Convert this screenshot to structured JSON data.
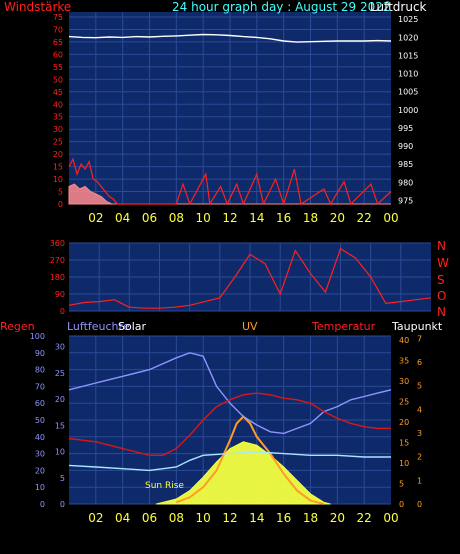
{
  "header": {
    "left_label": "Windstärke",
    "title": "24 hour graph day : August 29 2022",
    "right_label": "Luftdruck"
  },
  "dir_labels": [
    "N",
    "W",
    "S",
    "O",
    "N"
  ],
  "bottom_labels": {
    "regen": "Regen",
    "luftfeuchte": "Luftfeuchte",
    "solar": "Solar",
    "uv": "UV",
    "temperatur": "Temperatur",
    "taupunkt": "Taupunkt",
    "sunrise": "Sun Rise"
  },
  "colors": {
    "plot_bg": "#0f2a6b",
    "grid": "#2c4a96",
    "wind": "#ff2020",
    "gust": "#ff8a8a",
    "pressure": "#ffffff",
    "humidity": "#8f95ff",
    "temperature": "#d81818",
    "dewpoint": "#a8e6ff",
    "solar": "#f4ff40",
    "uv": "#ff9b26",
    "x_ticks": "#ffff40",
    "title": "#40ffff"
  },
  "chart_data": [
    {
      "type": "line",
      "name": "wind-pressure",
      "x_ticks": [
        "02",
        "04",
        "06",
        "08",
        "10",
        "12",
        "14",
        "16",
        "18",
        "20",
        "22",
        "00"
      ],
      "y_left_ticks": [
        0,
        5,
        10,
        15,
        20,
        25,
        30,
        35,
        40,
        45,
        50,
        55,
        60,
        65,
        70,
        75
      ],
      "y_right_ticks": [
        975,
        980,
        985,
        990,
        995,
        1000,
        1005,
        1010,
        1015,
        1020,
        1025
      ],
      "ylim_left": [
        0,
        77
      ],
      "ylim_right": [
        974,
        1027
      ],
      "series": [
        {
          "key": "pressure",
          "points": [
            [
              0,
              1020.2
            ],
            [
              1,
              1020.0
            ],
            [
              2,
              1019.9
            ],
            [
              3,
              1020.1
            ],
            [
              4,
              1020.0
            ],
            [
              5,
              1020.2
            ],
            [
              6,
              1020.1
            ],
            [
              7,
              1020.3
            ],
            [
              8,
              1020.4
            ],
            [
              9,
              1020.6
            ],
            [
              10,
              1020.8
            ],
            [
              11,
              1020.7
            ],
            [
              12,
              1020.5
            ],
            [
              13,
              1020.2
            ],
            [
              14,
              1020.0
            ],
            [
              15,
              1019.6
            ],
            [
              16,
              1019.0
            ],
            [
              17,
              1018.7
            ],
            [
              18,
              1018.8
            ],
            [
              19,
              1018.9
            ],
            [
              20,
              1019.0
            ],
            [
              21,
              1019.0
            ],
            [
              22,
              1019.0
            ],
            [
              23,
              1019.1
            ],
            [
              24,
              1019.0
            ]
          ]
        },
        {
          "key": "wind",
          "points": [
            [
              0,
              15
            ],
            [
              0.3,
              18
            ],
            [
              0.6,
              12
            ],
            [
              0.9,
              16
            ],
            [
              1.2,
              14
            ],
            [
              1.5,
              17
            ],
            [
              1.8,
              10
            ],
            [
              2.1,
              9
            ],
            [
              2.4,
              7
            ],
            [
              2.7,
              5
            ],
            [
              3,
              3
            ],
            [
              3.3,
              2
            ],
            [
              3.6,
              0
            ],
            [
              6,
              0
            ],
            [
              8,
              0
            ],
            [
              8.5,
              8
            ],
            [
              9,
              0
            ],
            [
              10.2,
              12
            ],
            [
              10.5,
              0
            ],
            [
              11.3,
              7
            ],
            [
              11.8,
              0
            ],
            [
              12.5,
              8
            ],
            [
              13,
              0
            ],
            [
              14,
              12
            ],
            [
              14.5,
              0
            ],
            [
              15.4,
              10
            ],
            [
              16,
              0
            ],
            [
              16.8,
              14
            ],
            [
              17.3,
              0
            ],
            [
              19,
              6
            ],
            [
              19.5,
              0
            ],
            [
              20.5,
              9
            ],
            [
              21,
              0
            ],
            [
              22.5,
              8
            ],
            [
              23,
              0
            ],
            [
              24,
              5
            ]
          ]
        },
        {
          "key": "gust",
          "points": [
            [
              0,
              7
            ],
            [
              0.4,
              8
            ],
            [
              0.8,
              6
            ],
            [
              1.2,
              7
            ],
            [
              1.6,
              5
            ],
            [
              2,
              4
            ],
            [
              2.4,
              3
            ],
            [
              2.8,
              1
            ],
            [
              3.2,
              0
            ],
            [
              24,
              0
            ]
          ]
        }
      ]
    },
    {
      "type": "scatter",
      "name": "wind-direction",
      "x_ticks": [
        "02",
        "04",
        "06",
        "08",
        "10",
        "12",
        "14",
        "16",
        "18",
        "20",
        "22",
        "00"
      ],
      "y_ticks": [
        0,
        90,
        180,
        270,
        360
      ],
      "ylim": [
        0,
        360
      ],
      "series": [
        {
          "key": "direction",
          "points": [
            [
              0,
              30
            ],
            [
              1,
              45
            ],
            [
              2,
              50
            ],
            [
              3,
              60
            ],
            [
              4,
              20
            ],
            [
              5,
              15
            ],
            [
              6,
              15
            ],
            [
              7,
              20
            ],
            [
              8,
              30
            ],
            [
              10,
              70
            ],
            [
              11,
              180
            ],
            [
              12,
              300
            ],
            [
              13,
              250
            ],
            [
              14,
              90
            ],
            [
              15,
              320
            ],
            [
              16,
              200
            ],
            [
              17,
              100
            ],
            [
              18,
              330
            ],
            [
              19,
              280
            ],
            [
              20,
              180
            ],
            [
              21,
              40
            ],
            [
              22,
              50
            ],
            [
              23,
              60
            ],
            [
              24,
              70
            ]
          ]
        }
      ]
    },
    {
      "type": "line",
      "name": "environment",
      "x_ticks": [
        "02",
        "04",
        "06",
        "08",
        "10",
        "12",
        "14",
        "16",
        "18",
        "20",
        "22",
        "00"
      ],
      "y_left_ticks": [
        0,
        10,
        20,
        30,
        40,
        50,
        60,
        70,
        80,
        90,
        100
      ],
      "y_left2_ticks": [
        0,
        5,
        10,
        15,
        20,
        25,
        30
      ],
      "y_right_ticks": [
        0,
        5,
        10,
        15,
        20,
        25,
        30,
        35,
        40
      ],
      "y_right2_ticks": [
        0,
        1,
        2,
        3,
        4,
        5,
        6,
        7
      ],
      "series": [
        {
          "key": "humidity",
          "points": [
            [
              0,
              68
            ],
            [
              2,
              72
            ],
            [
              4,
              76
            ],
            [
              6,
              80
            ],
            [
              8,
              87
            ],
            [
              9,
              90
            ],
            [
              10,
              88
            ],
            [
              11,
              70
            ],
            [
              12,
              60
            ],
            [
              13,
              52
            ],
            [
              14,
              47
            ],
            [
              15,
              43
            ],
            [
              16,
              42
            ],
            [
              17,
              45
            ],
            [
              18,
              48
            ],
            [
              19,
              55
            ],
            [
              20,
              58
            ],
            [
              21,
              62
            ],
            [
              22,
              64
            ],
            [
              23,
              66
            ],
            [
              24,
              68
            ]
          ]
        },
        {
          "key": "temperature",
          "points": [
            [
              0,
              39
            ],
            [
              2,
              37
            ],
            [
              4,
              33
            ],
            [
              6,
              29
            ],
            [
              7,
              29
            ],
            [
              8,
              33
            ],
            [
              9,
              41
            ],
            [
              10,
              50
            ],
            [
              11,
              58
            ],
            [
              12,
              62
            ],
            [
              13,
              65
            ],
            [
              14,
              66
            ],
            [
              15,
              65
            ],
            [
              16,
              63
            ],
            [
              17,
              62
            ],
            [
              18,
              60
            ],
            [
              19,
              55
            ],
            [
              20,
              51
            ],
            [
              21,
              48
            ],
            [
              22,
              46
            ],
            [
              23,
              45
            ],
            [
              24,
              45
            ]
          ]
        },
        {
          "key": "dewpoint",
          "points": [
            [
              0,
              23
            ],
            [
              2,
              22
            ],
            [
              4,
              21
            ],
            [
              6,
              20
            ],
            [
              8,
              22
            ],
            [
              9,
              26
            ],
            [
              10,
              29
            ],
            [
              12,
              30
            ],
            [
              14,
              31
            ],
            [
              16,
              30
            ],
            [
              18,
              29
            ],
            [
              20,
              29
            ],
            [
              22,
              28
            ],
            [
              24,
              28
            ]
          ]
        },
        {
          "key": "solar",
          "points": [
            [
              6.5,
              0
            ],
            [
              7,
              1
            ],
            [
              8,
              3
            ],
            [
              9,
              8
            ],
            [
              10,
              16
            ],
            [
              11,
              25
            ],
            [
              12,
              33
            ],
            [
              13,
              37
            ],
            [
              14,
              35
            ],
            [
              15,
              29
            ],
            [
              16,
              22
            ],
            [
              17,
              14
            ],
            [
              18,
              6
            ],
            [
              19,
              1
            ],
            [
              19.5,
              0
            ]
          ]
        },
        {
          "key": "uv",
          "points": [
            [
              8,
              1
            ],
            [
              9,
              4
            ],
            [
              10,
              10
            ],
            [
              11,
              20
            ],
            [
              12,
              38
            ],
            [
              12.5,
              48
            ],
            [
              13,
              52
            ],
            [
              13.5,
              48
            ],
            [
              14,
              40
            ],
            [
              15,
              30
            ],
            [
              16,
              18
            ],
            [
              17,
              8
            ],
            [
              18,
              2
            ],
            [
              19,
              0
            ]
          ]
        }
      ]
    }
  ]
}
